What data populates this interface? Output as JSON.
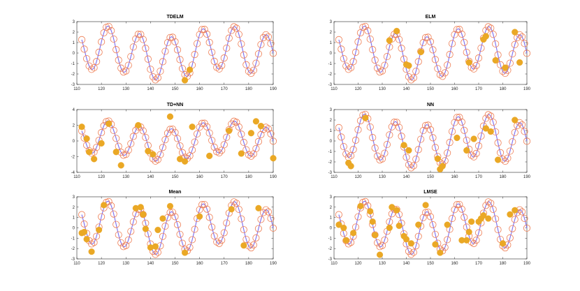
{
  "colors": {
    "signal": "#7b6cf0",
    "rings": "#ee7c52",
    "dots": "#eaa825"
  },
  "chart_data": [
    {
      "type": "scatter",
      "title": "TDELM",
      "xlim": [
        110,
        190
      ],
      "ylim": [
        -3,
        3
      ],
      "xticks": [
        110,
        120,
        130,
        140,
        150,
        160,
        170,
        180,
        190
      ],
      "yticks": [
        -3,
        -2,
        -1,
        0,
        1,
        2,
        3
      ],
      "selected": [
        [
          154,
          -2.6
        ],
        [
          156,
          -1.6
        ]
      ]
    },
    {
      "type": "scatter",
      "title": "ELM",
      "xlim": [
        110,
        190
      ],
      "ylim": [
        -3,
        3
      ],
      "xticks": [
        110,
        120,
        130,
        140,
        150,
        160,
        170,
        180,
        190
      ],
      "yticks": [
        -3,
        -2,
        -1,
        0,
        1,
        2,
        3
      ],
      "selected": [
        [
          133,
          1.2
        ],
        [
          136,
          2.1
        ],
        [
          140,
          -1.1
        ],
        [
          141,
          -1.2
        ],
        [
          146,
          0.1
        ],
        [
          166,
          -0.9
        ],
        [
          172,
          1.3
        ],
        [
          173,
          1.6
        ],
        [
          177,
          -0.7
        ],
        [
          181,
          -1.4
        ],
        [
          185,
          2.0
        ],
        [
          187,
          -0.9
        ]
      ]
    },
    {
      "type": "scatter",
      "title": "TD+NN",
      "xlim": [
        110,
        190
      ],
      "ylim": [
        -4,
        4
      ],
      "xticks": [
        110,
        120,
        130,
        140,
        150,
        160,
        170,
        180,
        190
      ],
      "yticks": [
        -4,
        -2,
        0,
        2,
        4
      ],
      "selected": [
        [
          112,
          1.8
        ],
        [
          114,
          0.3
        ],
        [
          115,
          -1.4
        ],
        [
          117,
          -2.3
        ],
        [
          120,
          -0.3
        ],
        [
          123,
          2.2
        ],
        [
          126,
          -1.4
        ],
        [
          128,
          -3.1
        ],
        [
          135,
          2.0
        ],
        [
          139,
          -1.3
        ],
        [
          141,
          -1.7
        ],
        [
          148,
          3.1
        ],
        [
          152,
          -2.3
        ],
        [
          154,
          -2.6
        ],
        [
          157,
          1.8
        ],
        [
          164,
          -1.9
        ],
        [
          172,
          1.3
        ],
        [
          177,
          -1.6
        ],
        [
          181,
          1.0
        ],
        [
          183,
          2.5
        ],
        [
          185,
          1.9
        ],
        [
          190,
          -2.2
        ]
      ]
    },
    {
      "type": "scatter",
      "title": "NN",
      "xlim": [
        110,
        190
      ],
      "ylim": [
        -3,
        3
      ],
      "xticks": [
        110,
        120,
        130,
        140,
        150,
        160,
        170,
        180,
        190
      ],
      "yticks": [
        -3,
        -2,
        -1,
        0,
        1,
        2,
        3
      ],
      "selected": [
        [
          116,
          -2.1
        ],
        [
          117,
          -2.4
        ],
        [
          123,
          2.2
        ],
        [
          139,
          -0.4
        ],
        [
          141,
          -0.9
        ],
        [
          153,
          -1.7
        ],
        [
          154,
          -2.7
        ],
        [
          155,
          -2.4
        ],
        [
          161,
          0.3
        ],
        [
          165,
          -0.9
        ],
        [
          168,
          0.2
        ],
        [
          173,
          1.2
        ],
        [
          175,
          0.9
        ],
        [
          178,
          -1.8
        ],
        [
          185,
          2.0
        ]
      ]
    },
    {
      "type": "scatter",
      "title": "Mean",
      "xlim": [
        110,
        190
      ],
      "ylim": [
        -3,
        3
      ],
      "xticks": [
        110,
        120,
        130,
        140,
        150,
        160,
        170,
        180,
        190
      ],
      "yticks": [
        -3,
        -2,
        -1,
        0,
        1,
        2,
        3
      ],
      "selected": [
        [
          112,
          -0.5
        ],
        [
          113,
          -0.4
        ],
        [
          114,
          -1.1
        ],
        [
          116,
          -2.3
        ],
        [
          119,
          -0.2
        ],
        [
          121,
          2.2
        ],
        [
          134,
          1.9
        ],
        [
          136,
          2.0
        ],
        [
          137,
          1.3
        ],
        [
          138,
          -0.1
        ],
        [
          140,
          -1.9
        ],
        [
          142,
          -1.8
        ],
        [
          143,
          -0.2
        ],
        [
          145,
          0.9
        ],
        [
          148,
          2.1
        ],
        [
          154,
          -2.4
        ],
        [
          160,
          1.1
        ],
        [
          173,
          1.8
        ],
        [
          178,
          -1.7
        ],
        [
          184,
          1.9
        ]
      ]
    },
    {
      "type": "scatter",
      "title": "LMSE",
      "xlim": [
        110,
        190
      ],
      "ylim": [
        -3,
        3
      ],
      "xticks": [
        110,
        120,
        130,
        140,
        150,
        160,
        170,
        180,
        190
      ],
      "yticks": [
        -3,
        -2,
        -1,
        0,
        1,
        2,
        3
      ],
      "selected": [
        [
          112,
          0.3
        ],
        [
          114,
          0.0
        ],
        [
          115,
          -1.2
        ],
        [
          118,
          -0.5
        ],
        [
          121,
          2.1
        ],
        [
          125,
          1.6
        ],
        [
          126,
          0.6
        ],
        [
          127,
          -0.7
        ],
        [
          129,
          -2.6
        ],
        [
          133,
          0.0
        ],
        [
          134,
          2.0
        ],
        [
          136,
          1.7
        ],
        [
          137,
          0.2
        ],
        [
          139,
          -0.8
        ],
        [
          140,
          -1.1
        ],
        [
          142,
          -1.5
        ],
        [
          145,
          0.3
        ],
        [
          148,
          2.2
        ],
        [
          152,
          -1.6
        ],
        [
          154,
          -2.4
        ],
        [
          157,
          0.3
        ],
        [
          163,
          -1.2
        ],
        [
          165,
          -1.2
        ],
        [
          166,
          -0.4
        ],
        [
          167,
          0.6
        ],
        [
          170,
          0.6
        ],
        [
          171,
          0.9
        ],
        [
          172,
          1.2
        ],
        [
          174,
          0.9
        ],
        [
          180,
          -1.5
        ],
        [
          183,
          1.3
        ],
        [
          185,
          1.7
        ]
      ]
    }
  ],
  "signal_model": {
    "comment": "underlying signal y(t) drawn as line; hollow rings = signal samples at integer t",
    "t_start": 112,
    "t_end": 190,
    "components": [
      {
        "amp": 2.05,
        "period": 12.9,
        "phase_t": 122.7
      },
      {
        "amp": 0.55,
        "period": 50.0,
        "phase_t": 120.0
      }
    ]
  }
}
